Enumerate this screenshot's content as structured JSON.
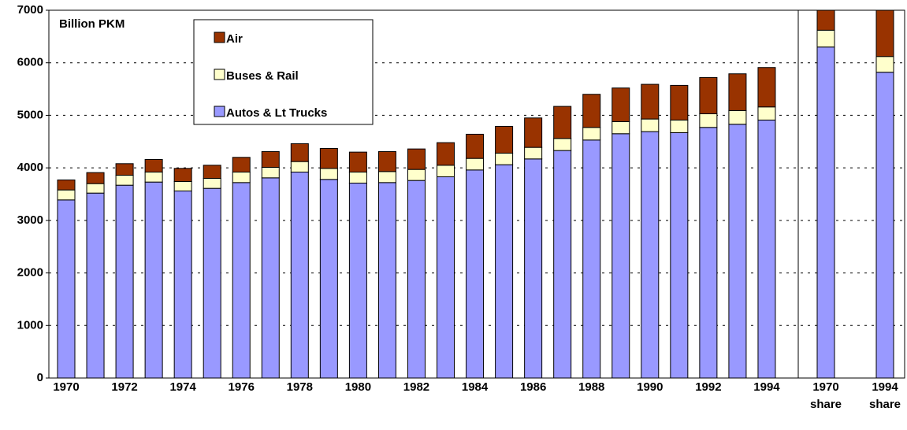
{
  "chart_data": {
    "type": "stacked-bar",
    "title": "Billion PKM",
    "categories": [
      "1970",
      null,
      "1972",
      null,
      "1974",
      null,
      "1976",
      null,
      "1978",
      null,
      "1980",
      null,
      "1982",
      null,
      "1984",
      null,
      "1986",
      null,
      "1988",
      null,
      "1990",
      null,
      "1992",
      null,
      "1994",
      "1970 share",
      "1994 share"
    ],
    "series": [
      {
        "name": "Autos & Lt Trucks",
        "color": "#9999ff",
        "values": [
          3390,
          3520,
          3670,
          3730,
          3560,
          3610,
          3720,
          3810,
          3920,
          3780,
          3710,
          3720,
          3760,
          3830,
          3960,
          4060,
          4170,
          4330,
          4530,
          4650,
          4690,
          4670,
          4770,
          4830,
          4910,
          6300,
          5820
        ]
      },
      {
        "name": "Buses & Rail",
        "color": "#ffffcc",
        "values": [
          190,
          180,
          190,
          190,
          180,
          190,
          200,
          200,
          200,
          210,
          210,
          210,
          210,
          220,
          220,
          220,
          220,
          230,
          240,
          230,
          240,
          240,
          260,
          260,
          250,
          320,
          300
        ]
      },
      {
        "name": "Air",
        "color": "#993300",
        "values": [
          190,
          210,
          220,
          240,
          250,
          250,
          280,
          300,
          340,
          380,
          380,
          380,
          390,
          430,
          460,
          510,
          560,
          610,
          630,
          640,
          660,
          660,
          690,
          700,
          750,
          380,
          880
        ]
      }
    ],
    "ylim": [
      0,
      7000
    ],
    "yticks": [
      0,
      1000,
      2000,
      3000,
      4000,
      5000,
      6000,
      7000
    ],
    "grid": true,
    "legend": "upper-left"
  }
}
